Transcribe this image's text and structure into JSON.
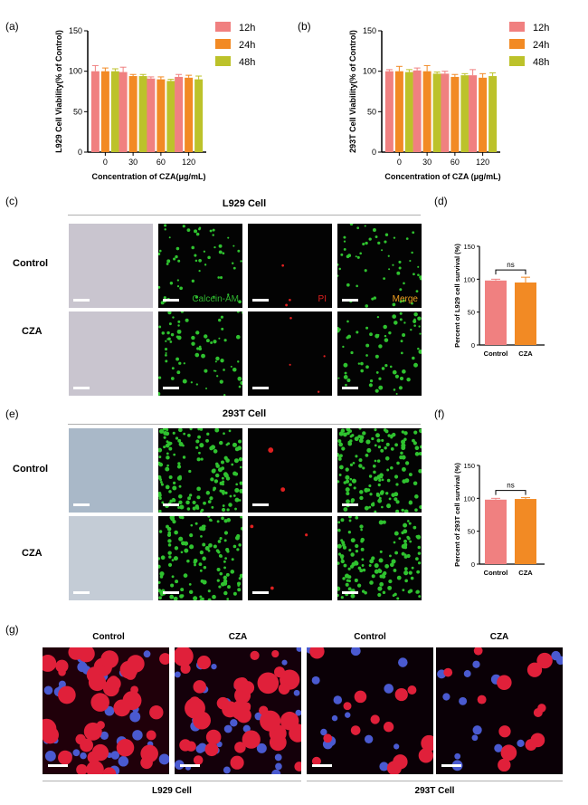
{
  "panels": {
    "a": "(a)",
    "b": "(b)",
    "c": "(c)",
    "d": "(d)",
    "e": "(e)",
    "f": "(f)",
    "g": "(g)"
  },
  "section_titles": {
    "l929": "L929 Cell",
    "t293": "293T Cell"
  },
  "row_labels": {
    "control": "Control",
    "cza": "CZA"
  },
  "stain_labels": {
    "calcein": "Calcein-AM",
    "pi": "PI",
    "merge": "Merge"
  },
  "stain_colors": {
    "calcein": "#2fb32f",
    "pi": "#e02020",
    "merge": "#f0a020"
  },
  "g_labels": {
    "control_l929": "Control",
    "cza_l929": "CZA",
    "control_293": "Control",
    "cza_293": "CZA",
    "l929": "L929 Cell",
    "t293": "293T Cell"
  },
  "series_colors": {
    "12h": "#f08080",
    "24h": "#f28a24",
    "48h": "#bcc22a",
    "control": "#f08080",
    "cza": "#f28a24"
  },
  "chart_data": [
    {
      "type": "bar",
      "panel": "a",
      "ylabel": "L929 Cell Viability(% of Control)",
      "xlabel": "Concentration of CZA(μg/mL)",
      "categories": [
        "0",
        "30",
        "60",
        "120"
      ],
      "ylim": [
        0,
        150
      ],
      "yticks": [
        0,
        50,
        100,
        150
      ],
      "series": [
        {
          "name": "12h",
          "values": [
            100,
            99,
            91,
            93
          ],
          "err": [
            7,
            6,
            2,
            3
          ]
        },
        {
          "name": "24h",
          "values": [
            100,
            94,
            90,
            92
          ],
          "err": [
            4,
            2,
            3,
            3
          ]
        },
        {
          "name": "48h",
          "values": [
            100,
            94,
            88,
            90
          ],
          "err": [
            3,
            2,
            2,
            4
          ]
        }
      ],
      "legend": "top-right"
    },
    {
      "type": "bar",
      "panel": "b",
      "ylabel": "293T Cell Viability(% of Control)",
      "xlabel": "Concentration of CZA (μg/mL)",
      "categories": [
        "0",
        "30",
        "60",
        "120"
      ],
      "ylim": [
        0,
        150
      ],
      "yticks": [
        0,
        50,
        100,
        150
      ],
      "series": [
        {
          "name": "12h",
          "values": [
            100,
            101,
            97,
            95
          ],
          "err": [
            2,
            3,
            3,
            7
          ]
        },
        {
          "name": "24h",
          "values": [
            100,
            100,
            93,
            92
          ],
          "err": [
            6,
            7,
            3,
            5
          ]
        },
        {
          "name": "48h",
          "values": [
            99,
            97,
            95,
            94
          ],
          "err": [
            3,
            2,
            2,
            4
          ]
        }
      ],
      "legend": "top-right"
    },
    {
      "type": "bar",
      "panel": "d",
      "ylabel": "Percent of L929 cell survival (%)",
      "categories": [
        "Control",
        "CZA"
      ],
      "ylim": [
        0,
        150
      ],
      "yticks": [
        0,
        50,
        100,
        150
      ],
      "values": [
        98,
        95
      ],
      "err": [
        2,
        8
      ],
      "annotation": "ns"
    },
    {
      "type": "bar",
      "panel": "f",
      "ylabel": "Percent of 293T cell survival (%)",
      "categories": [
        "Control",
        "CZA"
      ],
      "ylim": [
        0,
        150
      ],
      "yticks": [
        0,
        50,
        100,
        150
      ],
      "values": [
        98,
        99
      ],
      "err": [
        2,
        2
      ],
      "annotation": "ns"
    }
  ]
}
